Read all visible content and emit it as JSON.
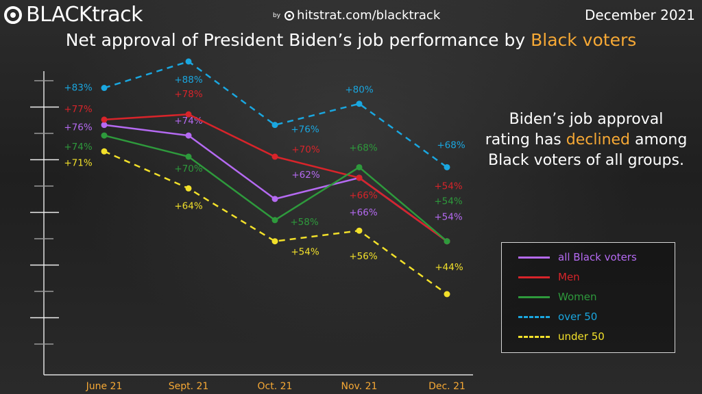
{
  "header": {
    "brand": "BLACKtrack",
    "by": "by",
    "site": "hitstrat.com/blacktrack",
    "date": "December 2021"
  },
  "title": {
    "prefix": "Net approval of President Biden’s job performance by ",
    "highlight": "Black voters"
  },
  "annotation": {
    "line1": "Biden’s job approval",
    "line2_pre": "rating has ",
    "line2_highlight": "declined",
    "line2_post": " among",
    "line3": "Black voters of all groups."
  },
  "colors": {
    "highlight": "#f7a935",
    "all_black_voters": "#b56af2",
    "men": "#d8242a",
    "women": "#2e9a3c",
    "over_50": "#1aa7e0",
    "under_50": "#f2e02a",
    "axis": "#e0e0e0"
  },
  "chart_data": {
    "type": "line",
    "categories": [
      "June 21",
      "Sept. 21",
      "Oct. 21",
      "Nov. 21",
      "Dec. 21"
    ],
    "ylim": [
      44,
      88
    ],
    "series": [
      {
        "name": "all Black voters",
        "key": "all_black_voters",
        "dashed": false,
        "values": [
          76,
          74,
          62,
          66,
          54
        ],
        "labels": [
          "+76%",
          "+74%",
          "+62%",
          "+66%",
          "+54%"
        ]
      },
      {
        "name": "Men",
        "key": "men",
        "dashed": false,
        "values": [
          77,
          78,
          70,
          66,
          54
        ],
        "labels": [
          "+77%",
          "+78%",
          "+70%",
          "+66%",
          "+54%"
        ]
      },
      {
        "name": "Women",
        "key": "women",
        "dashed": false,
        "values": [
          74,
          70,
          58,
          68,
          54
        ],
        "labels": [
          "+74%",
          "+70%",
          "+58%",
          "+68%",
          "+54%"
        ]
      },
      {
        "name": "over 50",
        "key": "over_50",
        "dashed": true,
        "values": [
          83,
          88,
          76,
          80,
          68
        ],
        "labels": [
          "+83%",
          "+88%",
          "+76%",
          "+80%",
          "+68%"
        ]
      },
      {
        "name": "under 50",
        "key": "under_50",
        "dashed": true,
        "values": [
          71,
          64,
          54,
          56,
          44
        ],
        "labels": [
          "+71%",
          "+64%",
          "+54%",
          "+56%",
          "+44%"
        ]
      }
    ]
  },
  "legend": [
    {
      "label": "all Black voters",
      "key": "all_black_voters",
      "dashed": false
    },
    {
      "label": "Men",
      "key": "men",
      "dashed": false
    },
    {
      "label": "Women",
      "key": "women",
      "dashed": false
    },
    {
      "label": "over 50",
      "key": "over_50",
      "dashed": true
    },
    {
      "label": "under 50",
      "key": "under_50",
      "dashed": true
    }
  ]
}
